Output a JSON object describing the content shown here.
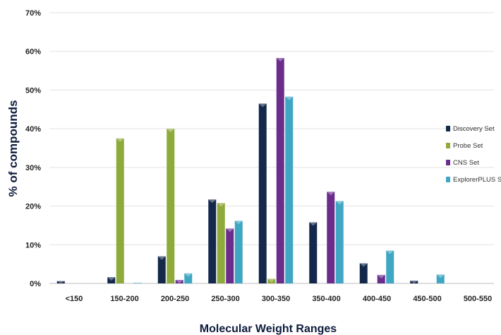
{
  "chart_data": {
    "type": "bar",
    "xlabel": "Molecular Weight Ranges",
    "ylabel": "% of compounds",
    "ylim": [
      0,
      70
    ],
    "yticks": [
      0,
      10,
      20,
      30,
      40,
      50,
      60,
      70
    ],
    "ytick_labels": [
      "0%",
      "10%",
      "20%",
      "30%",
      "40%",
      "50%",
      "60%",
      "70%"
    ],
    "grid": true,
    "legend_position": "right",
    "categories": [
      "<150",
      "150-200",
      "200-250",
      "250-300",
      "300-350",
      "350-400",
      "400-450",
      "450-500",
      "500-550"
    ],
    "series": [
      {
        "name": "Discovery Set",
        "color": "#14284b",
        "values": [
          0.6,
          1.6,
          7.0,
          21.7,
          46.5,
          15.8,
          5.2,
          0.7,
          0
        ]
      },
      {
        "name": "Probe Set",
        "color": "#8eaa3a",
        "values": [
          0,
          37.5,
          40.0,
          20.8,
          1.2,
          0,
          0,
          0,
          0
        ]
      },
      {
        "name": "CNS Set",
        "color": "#6a2d8c",
        "values": [
          0,
          0,
          0.9,
          14.2,
          58.3,
          23.7,
          2.2,
          0,
          0
        ]
      },
      {
        "name": "ExplorerPLUS Set",
        "color": "#3fa6c3",
        "values": [
          0,
          0.1,
          2.6,
          16.2,
          48.3,
          21.3,
          8.5,
          2.3,
          0
        ]
      }
    ]
  }
}
